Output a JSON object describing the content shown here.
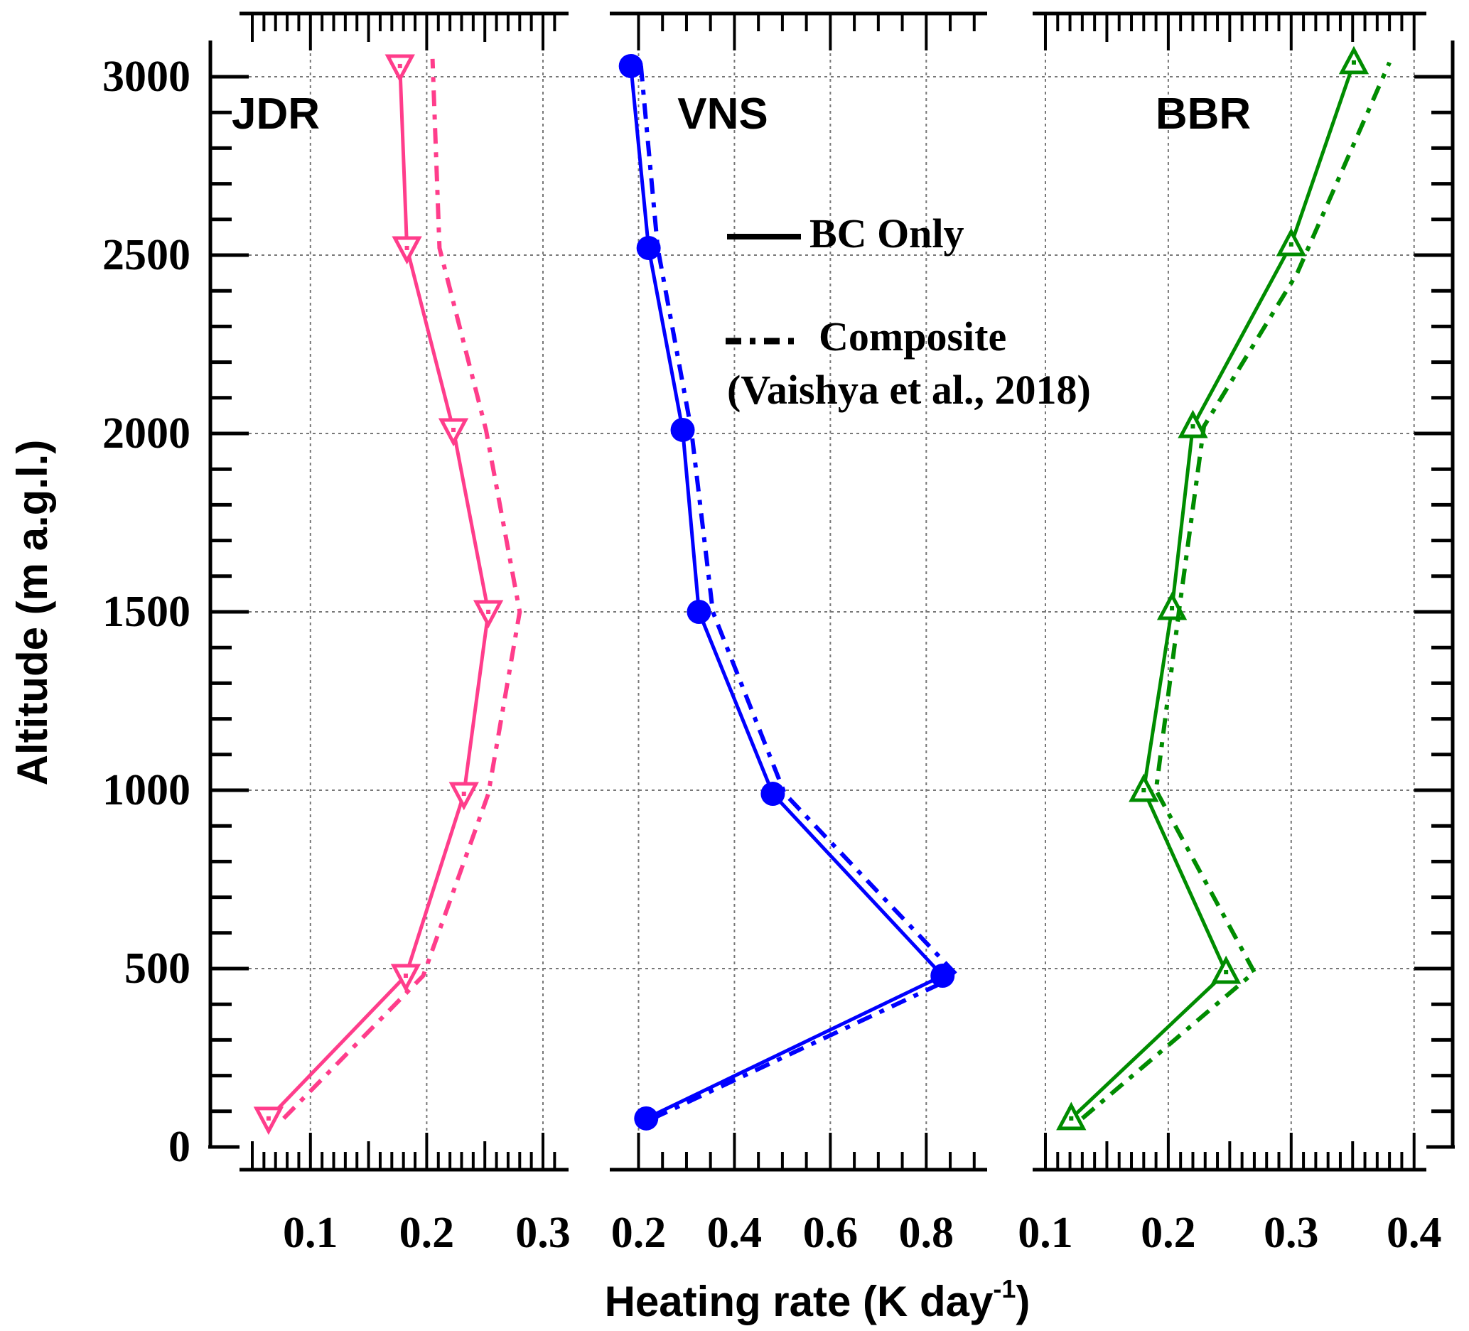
{
  "chart_data": {
    "type": "line",
    "ylabel": "Altitude (m a.g.l.)",
    "xlabel": "Heating rate (K day",
    "xlabel_sup": "-1",
    "xlabel_end": ")",
    "ylim": [
      0,
      3100
    ],
    "yticks": [
      0,
      500,
      1000,
      1500,
      2000,
      2500,
      3000
    ],
    "grid": true,
    "legend": {
      "placement": "top-center",
      "entries": [
        {
          "label": "BC Only",
          "style": "solid"
        },
        {
          "label": "Composite",
          "style": "dash-dot"
        }
      ],
      "note": "(Vaishya et al., 2018)"
    },
    "panels": [
      {
        "title": "JDR",
        "color": "#ff3d8b",
        "marker": "triangle-down",
        "xlim": [
          0.039,
          0.322
        ],
        "xticks": [
          0.1,
          0.2,
          0.3
        ],
        "xtick_labels": [
          "0.1",
          "0.2",
          "0.3"
        ],
        "minor_step": 0.01,
        "series": [
          {
            "name": "BC Only",
            "x": [
              0.064,
              0.182,
              0.232,
              0.253,
              0.223,
              0.183,
              0.177
            ],
            "y": [
              80,
              480,
              990,
              1500,
              2010,
              2520,
              3030
            ]
          },
          {
            "name": "Composite",
            "x": [
              0.077,
              0.197,
              0.253,
              0.28,
              0.251,
              0.211,
              0.205
            ],
            "y": [
              80,
              480,
              990,
              1500,
              2010,
              2520,
              3050
            ]
          }
        ]
      },
      {
        "title": "VNS",
        "color": "#0000ff",
        "marker": "circle",
        "xlim": [
          0.14,
          0.927
        ],
        "xticks": [
          0.2,
          0.4,
          0.6,
          0.8
        ],
        "xtick_labels": [
          "0.2",
          "0.4",
          "0.6",
          "0.8"
        ],
        "minor_step": 0.05,
        "series": [
          {
            "name": "BC Only",
            "x": [
              0.216,
              0.834,
              0.48,
              0.326,
              0.292,
              0.221,
              0.184
            ],
            "y": [
              80,
              480,
              990,
              1500,
              2010,
              2520,
              3030
            ]
          },
          {
            "name": "Composite",
            "x": [
              0.23,
              0.865,
              0.505,
              0.355,
              0.31,
              0.24,
              0.205
            ],
            "y": [
              80,
              480,
              990,
              1500,
              2010,
              2520,
              3030
            ]
          }
        ]
      },
      {
        "title": "BBR",
        "color": "#008c00",
        "marker": "triangle-up",
        "xlim": [
          0.0896,
          0.41
        ],
        "xticks": [
          0.1,
          0.2,
          0.3,
          0.4
        ],
        "xtick_labels": [
          "0.1",
          "0.2",
          "0.3",
          "0.4"
        ],
        "minor_step": 0.01,
        "series": [
          {
            "name": "BC Only",
            "x": [
              0.121,
              0.247,
              0.18,
              0.203,
              0.22,
              0.3,
              0.351
            ],
            "y": [
              80,
              490,
              1000,
              1510,
              2020,
              2530,
              3040
            ]
          },
          {
            "name": "Composite",
            "x": [
              0.13,
              0.27,
              0.19,
              0.209,
              0.229,
              0.305,
              0.38
            ],
            "y": [
              80,
              490,
              1000,
              1510,
              2020,
              2450,
              3040
            ]
          }
        ]
      }
    ]
  }
}
